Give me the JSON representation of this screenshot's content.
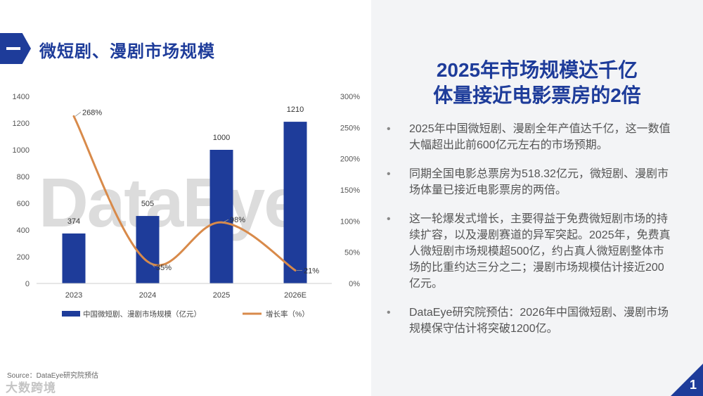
{
  "section": {
    "title": "微短剧、漫剧市场规模"
  },
  "headline": {
    "line1": "2025年市场规模达千亿",
    "line2": "体量接近电影票房的2倍"
  },
  "bullets": [
    "2025年中国微短剧、漫剧全年产值达千亿，这一数值大幅超出此前600亿元左右的市场预期。",
    "同期全国电影总票房为518.32亿元，微短剧、漫剧市场体量已接近电影票房的两倍。",
    "这一轮爆发式增长，主要得益于免费微短剧市场的持续扩容，以及漫剧赛道的异军突起。2025年，免费真人微短剧市场规模超500亿，约占真人微短剧整体市场的比重约达三分之二；漫剧市场规模估计接近200亿元。",
    "DataEye研究院预估：2026年中国微短剧、漫剧市场规模保守估计将突破1200亿。"
  ],
  "bullet_marker": "•",
  "watermark": "DataEye",
  "source": "Source：DataEye研究院预估",
  "brand": "大数跨境",
  "page_number": "1",
  "colors": {
    "primary": "#1e3c9a",
    "line": "#d88a4a",
    "panel": "#f3f4f6"
  },
  "chart_data": {
    "type": "bar",
    "categories": [
      "2023",
      "2024",
      "2025",
      "2026E"
    ],
    "series": [
      {
        "name": "中国微短剧、漫剧市场规模（亿元）",
        "type": "bar",
        "axis": "left",
        "values": [
          374,
          505,
          1000,
          1210
        ],
        "labels": [
          "374",
          "505",
          "1000",
          "1210"
        ]
      },
      {
        "name": "增长率（%）",
        "type": "line",
        "axis": "right",
        "values": [
          268,
          35,
          98,
          21
        ],
        "labels": [
          "268%",
          "35%",
          "98%",
          "21%"
        ]
      }
    ],
    "y_left": {
      "range": [
        0,
        1400
      ],
      "ticks": [
        0,
        200,
        400,
        600,
        800,
        1000,
        1200,
        1400
      ]
    },
    "y_right": {
      "range": [
        0,
        300
      ],
      "ticks": [
        "0%",
        "50%",
        "100%",
        "150%",
        "200%",
        "250%",
        "300%"
      ]
    },
    "grid": false,
    "legend": "bottom"
  }
}
